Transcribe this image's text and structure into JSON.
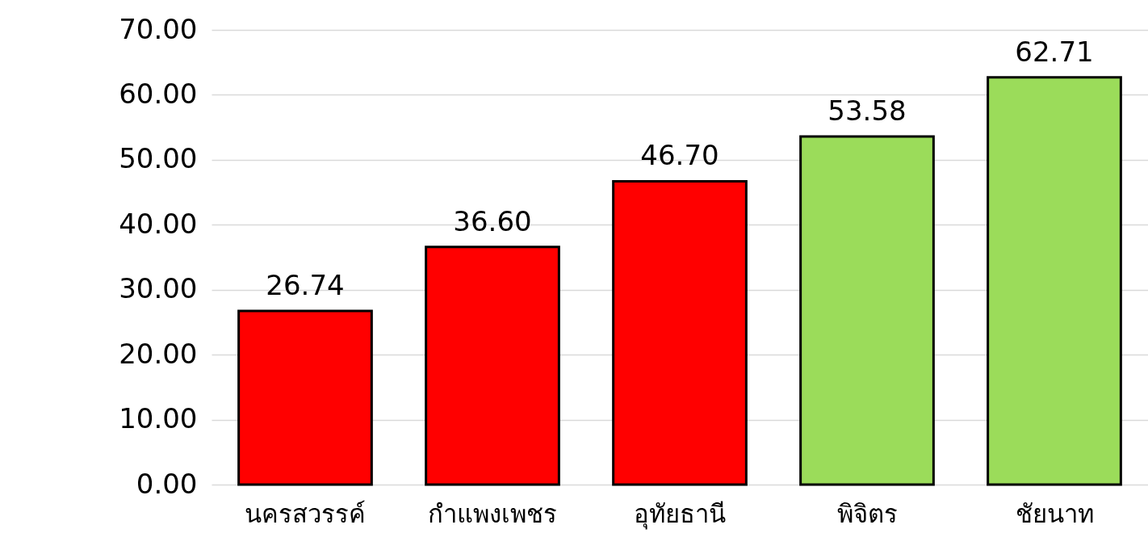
{
  "chart_data": {
    "type": "bar",
    "categories": [
      "นครสวรรค์",
      "กำแพงเพชร",
      "อุทัยธานี",
      "พิจิตร",
      "ชัยนาท"
    ],
    "values": [
      26.74,
      36.6,
      46.7,
      53.58,
      62.71
    ],
    "value_labels": [
      "26.74",
      "36.60",
      "46.70",
      "53.58",
      "62.71"
    ],
    "colors": [
      "#ff0000",
      "#ff0000",
      "#ff0000",
      "#9bdc5a",
      "#9bdc5a"
    ],
    "ylim": [
      0,
      70
    ],
    "yticks": [
      {
        "value": 0,
        "label": "0.00"
      },
      {
        "value": 10,
        "label": "10.00"
      },
      {
        "value": 20,
        "label": "20.00"
      },
      {
        "value": 30,
        "label": "30.00"
      },
      {
        "value": 40,
        "label": "40.00"
      },
      {
        "value": 50,
        "label": "50.00"
      },
      {
        "value": 60,
        "label": "60.00"
      },
      {
        "value": 70,
        "label": "70.00"
      }
    ],
    "grid": "y"
  }
}
